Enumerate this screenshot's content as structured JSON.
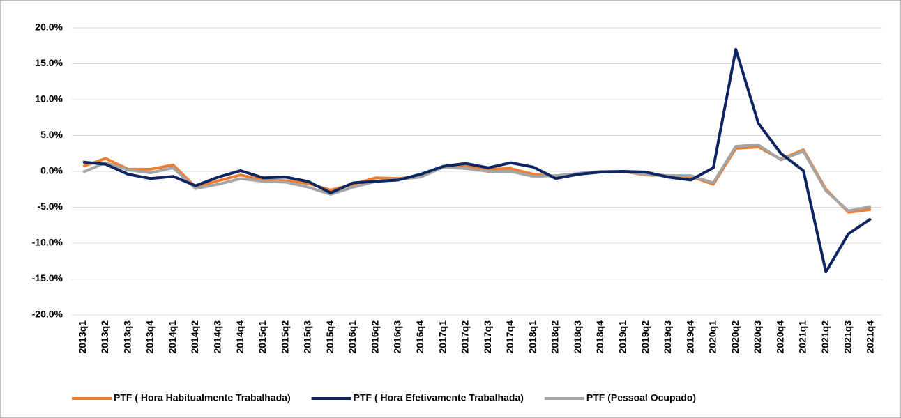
{
  "chart_data": {
    "type": "line",
    "categories": [
      "2013q1",
      "2013q2",
      "2013q3",
      "2013q4",
      "2014q1",
      "2014q2",
      "2014q3",
      "2014q4",
      "2015q1",
      "2015q2",
      "2015q3",
      "2015q4",
      "2016q1",
      "2016q2",
      "2016q3",
      "2016q4",
      "2017q1",
      "2017q2",
      "2017q3",
      "2017q4",
      "2018q1",
      "2018q2",
      "2018q3",
      "2018q4",
      "2019q1",
      "2019q2",
      "2019q3",
      "2019q4",
      "2020q1",
      "2020q2",
      "2020q3",
      "2020q4",
      "2021q1",
      "2021q2",
      "2021q3",
      "2021q4"
    ],
    "series": [
      {
        "name": "PTF ( Hora Habitualmente Trabalhada)",
        "color": "#ED7D31",
        "values": [
          0.7,
          1.8,
          0.3,
          0.3,
          0.9,
          -2.2,
          -1.3,
          -0.5,
          -1.2,
          -1.3,
          -1.7,
          -2.6,
          -1.8,
          -0.9,
          -1.0,
          -0.7,
          0.6,
          0.7,
          0.3,
          0.4,
          -0.4,
          -0.7,
          -0.3,
          0.0,
          0.0,
          -0.5,
          -0.6,
          -0.7,
          -1.8,
          3.2,
          3.4,
          1.7,
          3.0,
          -2.5,
          -5.7,
          -5.3
        ]
      },
      {
        "name": "PTF ( Hora Efetivamente Trabalhada)",
        "color": "#0D2560",
        "values": [
          1.3,
          1.0,
          -0.4,
          -1.0,
          -0.7,
          -2.0,
          -0.8,
          0.1,
          -0.9,
          -0.8,
          -1.4,
          -3.0,
          -1.6,
          -1.4,
          -1.2,
          -0.4,
          0.7,
          1.1,
          0.5,
          1.2,
          0.6,
          -1.0,
          -0.4,
          -0.1,
          0.0,
          -0.1,
          -0.8,
          -1.2,
          0.5,
          17.0,
          6.7,
          2.5,
          0.1,
          -14.0,
          -8.7,
          -6.6
        ]
      },
      {
        "name": "PTF (Pessoal Ocupado)",
        "color": "#A5A5A5",
        "values": [
          -0.1,
          1.2,
          0.2,
          -0.2,
          0.5,
          -2.4,
          -1.8,
          -1.0,
          -1.4,
          -1.5,
          -2.2,
          -3.2,
          -2.2,
          -1.4,
          -1.1,
          -0.8,
          0.6,
          0.4,
          0.0,
          0.0,
          -0.7,
          -0.6,
          -0.3,
          0.0,
          0.0,
          -0.4,
          -0.6,
          -0.6,
          -1.6,
          3.5,
          3.7,
          1.6,
          2.8,
          -2.7,
          -5.5,
          -4.9
        ]
      }
    ],
    "ylim": [
      -20,
      20
    ],
    "yticks": [
      {
        "value": -20,
        "label": "-20.0%"
      },
      {
        "value": -15,
        "label": "-15.0%"
      },
      {
        "value": -10,
        "label": "-10.0%"
      },
      {
        "value": -5,
        "label": "-5.0%"
      },
      {
        "value": 0,
        "label": "0.0%"
      },
      {
        "value": 5,
        "label": "5.0%"
      },
      {
        "value": 10,
        "label": "10.0%"
      },
      {
        "value": 15,
        "label": "15.0%"
      },
      {
        "value": 20,
        "label": "20.0%"
      }
    ],
    "grid": true,
    "legend": "bottom"
  }
}
